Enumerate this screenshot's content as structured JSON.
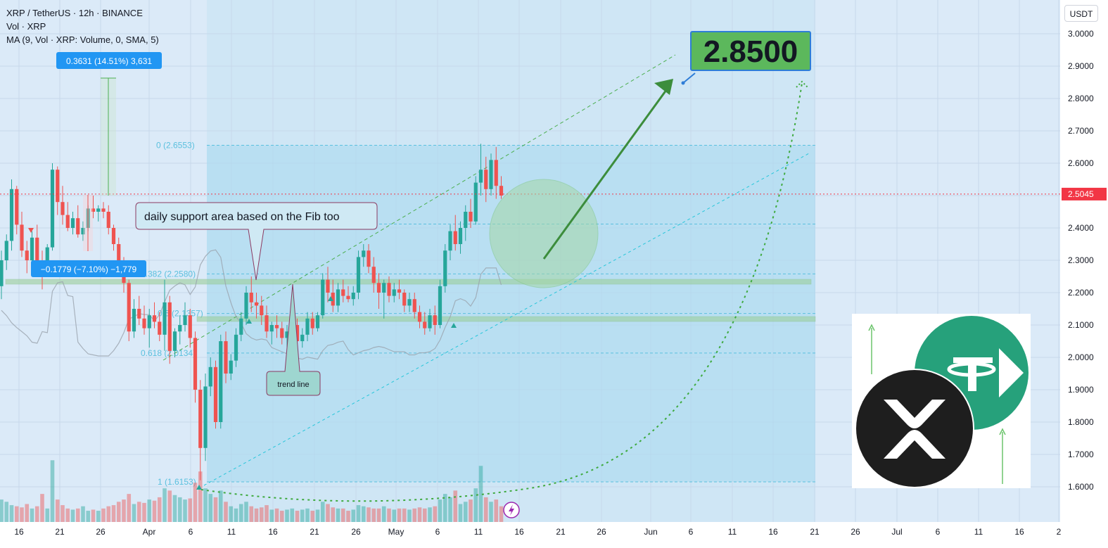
{
  "header": {
    "title": "XRP / TetherUS · 12h · BINANCE",
    "vol_label": "Vol · XRP",
    "ma_label": "MA (9, Vol · XRP: Volume, 0, SMA, 5)",
    "currency_button": "USDT"
  },
  "colors": {
    "up": "#26a69a",
    "down": "#ef5350",
    "fib_box": "#a7d8ee",
    "shaded_range": "#cde5f5",
    "price_tag": "#f23645",
    "target_box": "#5cb85c",
    "annotation_arrow": "#3c8d3c",
    "measure_blue": "#2196f3"
  },
  "chart_data": {
    "type": "candlestick",
    "symbol": "XRP / TetherUS",
    "interval": "12h",
    "exchange": "BINANCE",
    "y_axis": {
      "ylim": [
        1.55,
        3.06
      ],
      "ticks": [
        "1.6000",
        "1.7000",
        "1.8000",
        "1.9000",
        "2.0000",
        "2.1000",
        "2.2000",
        "2.3000",
        "2.4000",
        "2.5000",
        "2.6000",
        "2.7000",
        "2.8000",
        "2.9000",
        "3.0000"
      ],
      "current_price": "2.5045"
    },
    "x_axis": {
      "ticks": [
        "16",
        "21",
        "26",
        "Apr",
        "6",
        "11",
        "16",
        "21",
        "26",
        "May",
        "6",
        "11",
        "16",
        "21",
        "26",
        "Jun",
        "6",
        "11",
        "16",
        "21",
        "26",
        "Jul",
        "6",
        "11",
        "16",
        "2"
      ],
      "tick_dates": [
        "2025-03-16",
        "2025-03-21",
        "2025-03-26",
        "2025-04-01",
        "2025-04-06",
        "2025-04-11",
        "2025-04-16",
        "2025-04-21",
        "2025-04-26",
        "2025-05-01",
        "2025-05-06",
        "2025-05-11",
        "2025-05-16",
        "2025-05-21",
        "2025-05-26",
        "2025-06-01",
        "2025-06-06",
        "2025-06-11",
        "2025-06-16",
        "2025-06-21",
        "2025-06-26",
        "2025-07-01",
        "2025-07-06",
        "2025-07-11",
        "2025-07-16",
        "2025-07-21"
      ]
    },
    "candles": [
      [
        2.22,
        2.33,
        2.18,
        2.3
      ],
      [
        2.3,
        2.38,
        2.27,
        2.36
      ],
      [
        2.36,
        2.55,
        2.33,
        2.52
      ],
      [
        2.52,
        2.53,
        2.38,
        2.41
      ],
      [
        2.41,
        2.45,
        2.31,
        2.33
      ],
      [
        2.33,
        2.36,
        2.26,
        2.3
      ],
      [
        2.3,
        2.39,
        2.29,
        2.37
      ],
      [
        2.37,
        2.41,
        2.25,
        2.28
      ],
      [
        2.28,
        2.33,
        2.21,
        2.26
      ],
      [
        2.26,
        2.35,
        2.25,
        2.34
      ],
      [
        2.34,
        2.6,
        2.33,
        2.58
      ],
      [
        2.58,
        2.59,
        2.44,
        2.48
      ],
      [
        2.48,
        2.53,
        2.41,
        2.44
      ],
      [
        2.44,
        2.48,
        2.39,
        2.4
      ],
      [
        2.4,
        2.45,
        2.38,
        2.43
      ],
      [
        2.43,
        2.47,
        2.37,
        2.38
      ],
      [
        2.38,
        2.42,
        2.36,
        2.4
      ],
      [
        2.4,
        2.47,
        2.39,
        2.46
      ],
      [
        2.46,
        2.5,
        2.43,
        2.45
      ],
      [
        2.45,
        2.47,
        2.42,
        2.46
      ],
      [
        2.46,
        2.48,
        2.43,
        2.45
      ],
      [
        2.45,
        2.47,
        2.38,
        2.4
      ],
      [
        2.4,
        2.41,
        2.33,
        2.35
      ],
      [
        2.35,
        2.37,
        2.27,
        2.3
      ],
      [
        2.3,
        2.31,
        2.2,
        2.23
      ],
      [
        2.23,
        2.24,
        2.05,
        2.08
      ],
      [
        2.08,
        2.18,
        2.06,
        2.15
      ],
      [
        2.15,
        2.19,
        2.1,
        2.12
      ],
      [
        2.12,
        2.16,
        2.07,
        2.09
      ],
      [
        2.09,
        2.15,
        2.03,
        2.13
      ],
      [
        2.13,
        2.17,
        2.09,
        2.11
      ],
      [
        2.11,
        2.14,
        2.05,
        2.07
      ],
      [
        2.07,
        2.24,
        2.02,
        2.17
      ],
      [
        2.17,
        2.19,
        1.98,
        2.02
      ],
      [
        2.02,
        2.09,
        2.0,
        2.08
      ],
      [
        2.08,
        2.13,
        2.04,
        2.1
      ],
      [
        2.1,
        2.17,
        2.08,
        2.13
      ],
      [
        2.13,
        2.15,
        2.03,
        2.06
      ],
      [
        2.06,
        2.08,
        1.86,
        1.9
      ],
      [
        1.9,
        1.93,
        1.62,
        1.72
      ],
      [
        1.72,
        1.95,
        1.68,
        1.91
      ],
      [
        1.91,
        2.0,
        1.88,
        1.97
      ],
      [
        1.97,
        1.99,
        1.78,
        1.8
      ],
      [
        1.8,
        2.07,
        1.78,
        2.05
      ],
      [
        2.05,
        2.08,
        1.92,
        1.95
      ],
      [
        1.95,
        2.01,
        1.93,
        1.99
      ],
      [
        1.99,
        2.09,
        1.97,
        2.07
      ],
      [
        2.07,
        2.14,
        2.05,
        2.12
      ],
      [
        2.12,
        2.22,
        2.1,
        2.2
      ],
      [
        2.2,
        2.25,
        2.14,
        2.17
      ],
      [
        2.17,
        2.2,
        2.12,
        2.16
      ],
      [
        2.16,
        2.19,
        2.1,
        2.13
      ],
      [
        2.13,
        2.16,
        2.06,
        2.08
      ],
      [
        2.08,
        2.11,
        2.04,
        2.1
      ],
      [
        2.1,
        2.13,
        2.06,
        2.09
      ],
      [
        2.09,
        2.11,
        2.04,
        2.06
      ],
      [
        2.06,
        2.1,
        2.03,
        2.08
      ],
      [
        2.08,
        2.12,
        2.05,
        2.1
      ],
      [
        2.1,
        2.12,
        2.04,
        2.05
      ],
      [
        2.05,
        2.09,
        2.03,
        2.07
      ],
      [
        2.07,
        2.14,
        2.05,
        2.12
      ],
      [
        2.12,
        2.14,
        2.07,
        2.09
      ],
      [
        2.09,
        2.14,
        2.08,
        2.13
      ],
      [
        2.13,
        2.26,
        2.12,
        2.24
      ],
      [
        2.24,
        2.28,
        2.17,
        2.2
      ],
      [
        2.2,
        2.24,
        2.14,
        2.16
      ],
      [
        2.16,
        2.23,
        2.14,
        2.21
      ],
      [
        2.21,
        2.24,
        2.17,
        2.19
      ],
      [
        2.19,
        2.22,
        2.17,
        2.18
      ],
      [
        2.18,
        2.22,
        2.16,
        2.2
      ],
      [
        2.2,
        2.33,
        2.18,
        2.31
      ],
      [
        2.31,
        2.35,
        2.28,
        2.33
      ],
      [
        2.33,
        2.35,
        2.26,
        2.28
      ],
      [
        2.28,
        2.31,
        2.2,
        2.23
      ],
      [
        2.23,
        2.26,
        2.15,
        2.2
      ],
      [
        2.2,
        2.24,
        2.12,
        2.23
      ],
      [
        2.23,
        2.25,
        2.17,
        2.19
      ],
      [
        2.19,
        2.23,
        2.17,
        2.21
      ],
      [
        2.21,
        2.24,
        2.18,
        2.2
      ],
      [
        2.2,
        2.21,
        2.14,
        2.16
      ],
      [
        2.16,
        2.2,
        2.14,
        2.18
      ],
      [
        2.18,
        2.2,
        2.12,
        2.14
      ],
      [
        2.14,
        2.16,
        2.09,
        2.11
      ],
      [
        2.11,
        2.14,
        2.07,
        2.09
      ],
      [
        2.09,
        2.15,
        2.08,
        2.13
      ],
      [
        2.13,
        2.16,
        2.07,
        2.1
      ],
      [
        2.1,
        2.24,
        2.09,
        2.22
      ],
      [
        2.22,
        2.35,
        2.2,
        2.33
      ],
      [
        2.33,
        2.41,
        2.3,
        2.39
      ],
      [
        2.39,
        2.44,
        2.33,
        2.35
      ],
      [
        2.35,
        2.42,
        2.32,
        2.4
      ],
      [
        2.4,
        2.47,
        2.36,
        2.45
      ],
      [
        2.45,
        2.49,
        2.4,
        2.42
      ],
      [
        2.42,
        2.56,
        2.41,
        2.54
      ],
      [
        2.54,
        2.66,
        2.5,
        2.58
      ],
      [
        2.58,
        2.62,
        2.48,
        2.52
      ],
      [
        2.52,
        2.63,
        2.5,
        2.61
      ],
      [
        2.61,
        2.65,
        2.49,
        2.53
      ],
      [
        2.53,
        2.56,
        2.49,
        2.5
      ]
    ],
    "volume": [
      0.2,
      0.18,
      0.15,
      0.14,
      0.13,
      0.16,
      0.12,
      0.14,
      0.25,
      0.12,
      0.55,
      0.2,
      0.15,
      0.12,
      0.11,
      0.12,
      0.14,
      0.1,
      0.11,
      0.1,
      0.12,
      0.14,
      0.15,
      0.18,
      0.2,
      0.25,
      0.16,
      0.18,
      0.17,
      0.2,
      0.19,
      0.22,
      0.3,
      0.28,
      0.24,
      0.22,
      0.2,
      0.21,
      0.35,
      0.45,
      0.3,
      0.25,
      0.22,
      0.28,
      0.18,
      0.14,
      0.12,
      0.16,
      0.18,
      0.14,
      0.12,
      0.13,
      0.15,
      0.11,
      0.12,
      0.1,
      0.11,
      0.12,
      0.1,
      0.11,
      0.12,
      0.1,
      0.11,
      0.18,
      0.16,
      0.13,
      0.12,
      0.12,
      0.1,
      0.11,
      0.15,
      0.14,
      0.13,
      0.12,
      0.12,
      0.14,
      0.12,
      0.11,
      0.12,
      0.12,
      0.11,
      0.12,
      0.13,
      0.12,
      0.13,
      0.14,
      0.2,
      0.25,
      0.22,
      0.28,
      0.16,
      0.18,
      0.2,
      0.3,
      0.5,
      0.22,
      0.18,
      0.2,
      0.14
    ],
    "fib_levels": [
      {
        "label": "0 (2.6553)",
        "value": 2.6553
      },
      {
        "label": "0.382 (2.2580)",
        "value": 2.258
      },
      {
        "label": "0.5 (2.1357)",
        "value": 2.1357
      },
      {
        "label": "0.618 (2.0134)",
        "value": 2.0134
      },
      {
        "label": "1 (1.6153)",
        "value": 1.6153
      }
    ],
    "measure_up": "0.3631 (14.51%) 3,631",
    "measure_down": "−0.1779 (−7.10%) −1,779",
    "target": "2.8500",
    "annotations": {
      "support_note": "daily support area based on the Fib too",
      "trend_line_note": "trend line"
    }
  }
}
